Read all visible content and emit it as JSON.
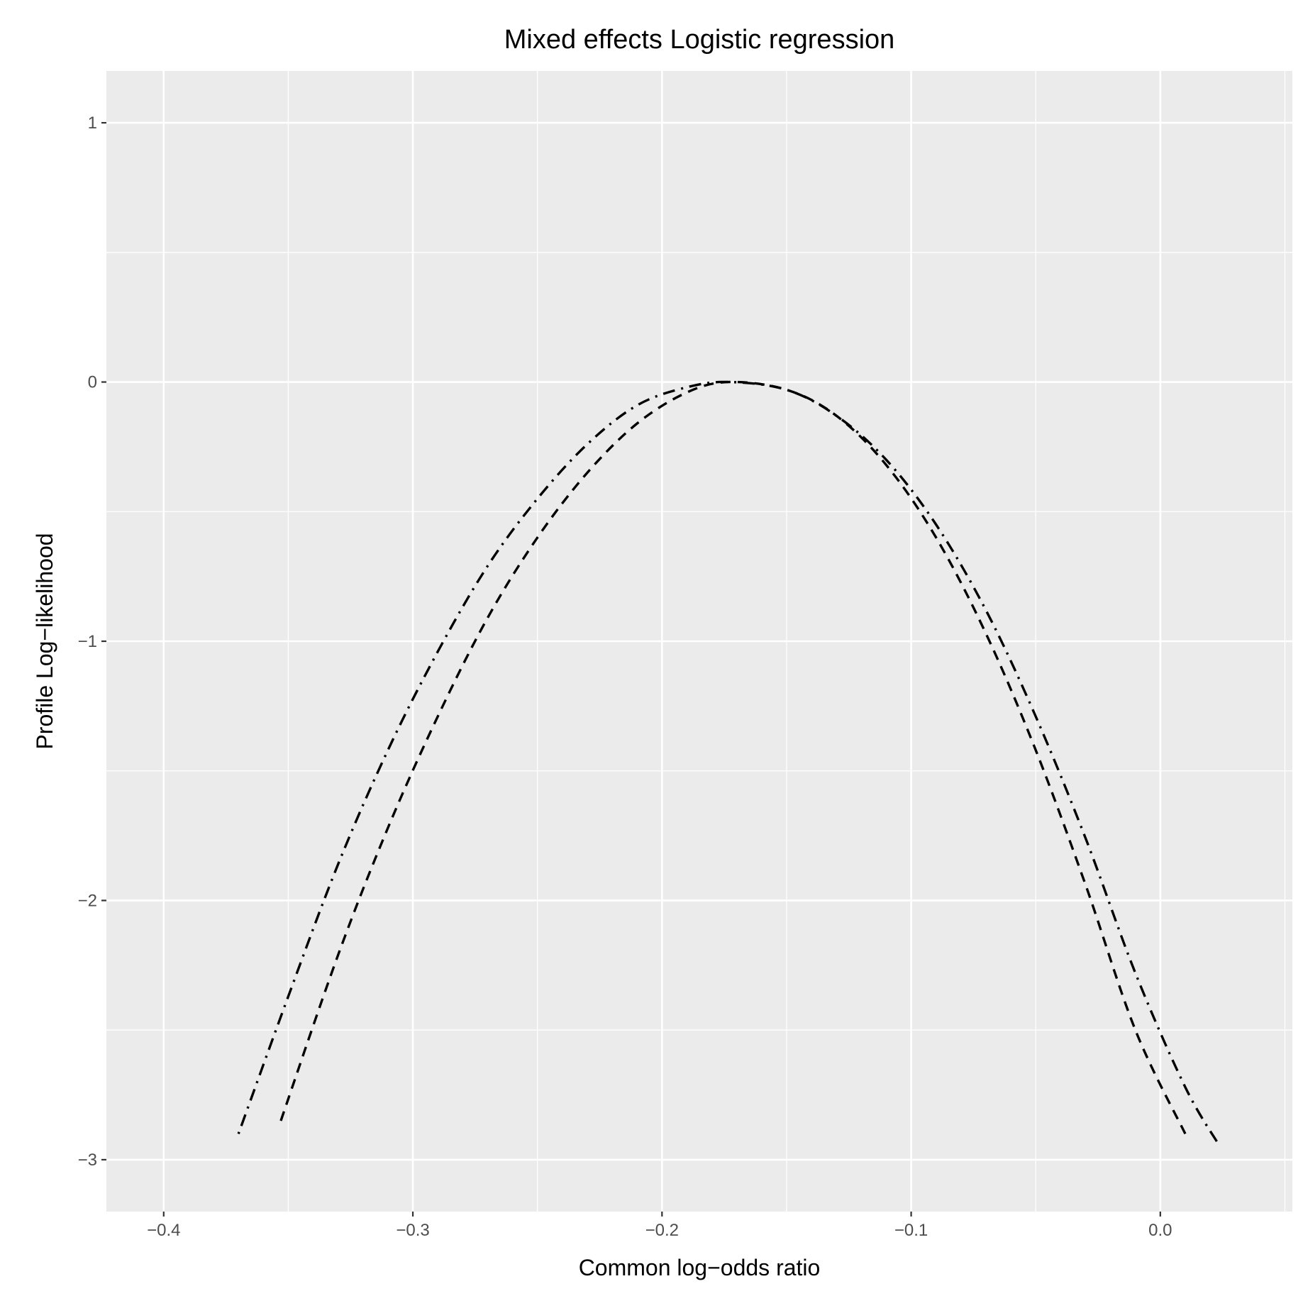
{
  "chart_data": {
    "type": "line",
    "title": "Mixed effects Logistic regression",
    "xlabel": "Common log−odds ratio",
    "ylabel": "Profile Log−likelihood",
    "xlim": [
      -0.423,
      0.053
    ],
    "ylim": [
      -3.2,
      1.2
    ],
    "x_ticks": [
      -0.4,
      -0.3,
      -0.2,
      -0.1,
      0.0
    ],
    "x_tick_labels": [
      "−0.4",
      "−0.3",
      "−0.2",
      "−0.1",
      "0.0"
    ],
    "y_ticks": [
      -3,
      -2,
      -1,
      0,
      1
    ],
    "y_tick_labels": [
      "−3",
      "−2",
      "−1",
      "0",
      "1"
    ],
    "grid": true,
    "series": [
      {
        "linetype": "dotdash",
        "color": "#000000",
        "x": [
          -0.37,
          -0.35,
          -0.33,
          -0.31,
          -0.29,
          -0.27,
          -0.25,
          -0.23,
          -0.21,
          -0.19,
          -0.173,
          -0.15,
          -0.13,
          -0.11,
          -0.09,
          -0.07,
          -0.05,
          -0.03,
          -0.01,
          0.01,
          0.024
        ],
        "y": [
          -2.9,
          -2.37,
          -1.86,
          -1.42,
          -1.04,
          -0.71,
          -0.45,
          -0.24,
          -0.09,
          -0.02,
          0.0,
          -0.03,
          -0.13,
          -0.3,
          -0.55,
          -0.88,
          -1.29,
          -1.76,
          -2.28,
          -2.72,
          -2.95
        ]
      },
      {
        "linetype": "dashed",
        "color": "#000000",
        "x": [
          -0.353,
          -0.33,
          -0.31,
          -0.29,
          -0.27,
          -0.25,
          -0.23,
          -0.21,
          -0.19,
          -0.173,
          -0.15,
          -0.13,
          -0.11,
          -0.09,
          -0.07,
          -0.05,
          -0.03,
          -0.01,
          0.01
        ],
        "y": [
          -2.85,
          -2.21,
          -1.72,
          -1.29,
          -0.91,
          -0.6,
          -0.35,
          -0.16,
          -0.04,
          0.0,
          -0.03,
          -0.13,
          -0.32,
          -0.6,
          -0.97,
          -1.42,
          -1.94,
          -2.5,
          -2.9
        ]
      }
    ]
  }
}
